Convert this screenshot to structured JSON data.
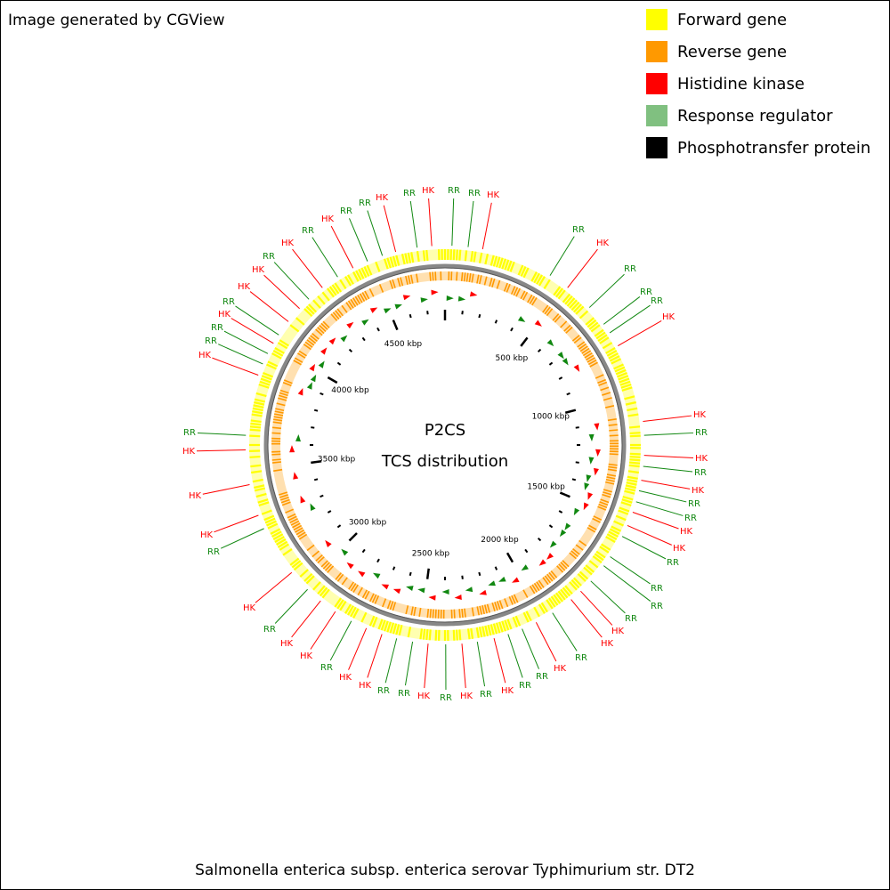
{
  "header": {
    "title": "Image generated by CGView"
  },
  "legend": [
    {
      "label": "Forward gene",
      "color": "#ffff00"
    },
    {
      "label": "Reverse gene",
      "color": "#ff9900"
    },
    {
      "label": "Histidine kinase",
      "color": "#ff0000"
    },
    {
      "label": "Response regulator",
      "color": "#80c080"
    },
    {
      "label": "Phosphotransfer protein",
      "color": "#000000"
    }
  ],
  "center": {
    "title": "P2CS",
    "subtitle": "TCS distribution"
  },
  "ring_labels": [
    "500 kbp",
    "1000 kbp",
    "1500 kbp",
    "2000 kbp",
    "2500 kbp",
    "3000 kbp",
    "3500 kbp",
    "4000 kbp",
    "4500 kbp"
  ],
  "features": [
    "RR",
    "HK",
    "RR",
    "RR",
    "HK",
    "RR",
    "HK",
    "RR",
    "RR",
    "RR",
    "HK",
    "HK",
    "RR",
    "HK",
    "RR",
    "HK",
    "RR",
    "RR",
    "HK",
    "HK",
    "RR",
    "RR",
    "RR",
    "RR",
    "HK",
    "HK",
    "RR",
    "HK",
    "RR",
    "RR",
    "HK",
    "RR",
    "HK",
    "RR",
    "HK",
    "RR",
    "RR",
    "HK",
    "HK",
    "RR",
    "HK",
    "HK",
    "RR",
    "HK",
    "RR",
    "HK",
    "HK",
    "HK",
    "RR",
    "HK",
    "RR",
    "RR",
    "HK",
    "RR",
    "HK",
    "HK",
    "RR",
    "HK",
    "RR",
    "HK",
    "RR",
    "RR",
    "HK"
  ],
  "footer": "Salmonella enterica subsp. enterica serovar Typhimurium str. DT2"
}
